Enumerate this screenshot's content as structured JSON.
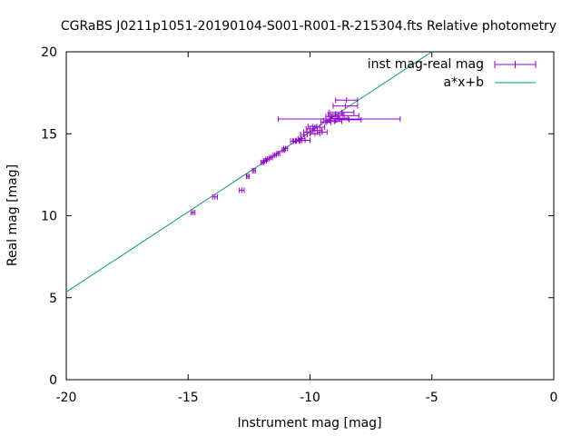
{
  "chart_data": {
    "type": "scatter",
    "title": "CGRaBS J0211p1051-20190104-S001-R001-R-215304.fts Relative photometry",
    "xlabel": "Instrument mag [mag]",
    "ylabel": "Real mag [mag]",
    "xlim": [
      -20,
      0
    ],
    "ylim": [
      0,
      20
    ],
    "x_ticks": [
      "-20",
      "-15",
      "-10",
      "-5",
      "0"
    ],
    "y_ticks": [
      "0",
      "5",
      "10",
      "15",
      "20"
    ],
    "grid": false,
    "legend_position": "top-right",
    "colors": {
      "points": "#9400d3",
      "fit": "#009e73"
    },
    "series": [
      {
        "name": "inst mag-real mag",
        "kind": "errorbar",
        "points": [
          {
            "x": -14.8,
            "y": 10.2,
            "xerr": 0.08
          },
          {
            "x": -13.9,
            "y": 11.15,
            "xerr": 0.1
          },
          {
            "x": -12.8,
            "y": 11.55,
            "xerr": 0.1
          },
          {
            "x": -12.55,
            "y": 12.4,
            "xerr": 0.06
          },
          {
            "x": -12.3,
            "y": 12.75,
            "xerr": 0.06
          },
          {
            "x": -11.95,
            "y": 13.25,
            "xerr": 0.06
          },
          {
            "x": -11.85,
            "y": 13.35,
            "xerr": 0.06
          },
          {
            "x": -11.75,
            "y": 13.45,
            "xerr": 0.06
          },
          {
            "x": -11.6,
            "y": 13.55,
            "xerr": 0.06
          },
          {
            "x": -11.45,
            "y": 13.7,
            "xerr": 0.06
          },
          {
            "x": -11.3,
            "y": 13.8,
            "xerr": 0.06
          },
          {
            "x": -11.1,
            "y": 14.0,
            "xerr": 0.06
          },
          {
            "x": -11.0,
            "y": 14.1,
            "xerr": 0.08
          },
          {
            "x": -10.7,
            "y": 14.55,
            "xerr": 0.1
          },
          {
            "x": -10.55,
            "y": 14.55,
            "xerr": 0.12
          },
          {
            "x": -10.45,
            "y": 14.6,
            "xerr": 0.12
          },
          {
            "x": -10.35,
            "y": 14.7,
            "xerr": 0.14
          },
          {
            "x": -10.25,
            "y": 14.95,
            "xerr": 0.14
          },
          {
            "x": -10.2,
            "y": 14.6,
            "xerr": 0.2
          },
          {
            "x": -10.1,
            "y": 15.1,
            "xerr": 0.16
          },
          {
            "x": -10.0,
            "y": 15.3,
            "xerr": 0.16
          },
          {
            "x": -9.9,
            "y": 15.45,
            "xerr": 0.18
          },
          {
            "x": -9.8,
            "y": 15.0,
            "xerr": 0.2
          },
          {
            "x": -9.7,
            "y": 15.2,
            "xerr": 0.18
          },
          {
            "x": -9.6,
            "y": 15.4,
            "xerr": 0.2
          },
          {
            "x": -9.5,
            "y": 15.1,
            "xerr": 0.2
          },
          {
            "x": -9.35,
            "y": 15.7,
            "xerr": 0.2
          },
          {
            "x": -9.2,
            "y": 15.8,
            "xerr": 0.25
          },
          {
            "x": -9.1,
            "y": 16.05,
            "xerr": 0.25
          },
          {
            "x": -9.0,
            "y": 15.75,
            "xerr": 0.3
          },
          {
            "x": -8.95,
            "y": 16.2,
            "xerr": 0.3
          },
          {
            "x": -8.8,
            "y": 15.95,
            "xerr": 0.35
          },
          {
            "x": -8.7,
            "y": 16.3,
            "xerr": 0.5
          },
          {
            "x": -8.6,
            "y": 16.1,
            "xerr": 0.6
          },
          {
            "x": -8.55,
            "y": 16.7,
            "xerr": 0.5
          },
          {
            "x": -8.5,
            "y": 17.05,
            "xerr": 0.45
          },
          {
            "x": -8.8,
            "y": 15.9,
            "xerr": 2.5
          },
          {
            "x": -8.4,
            "y": 15.85,
            "xerr": 0.5
          }
        ]
      },
      {
        "name": "a*x+b",
        "kind": "line",
        "x": [
          -20,
          -5.0
        ],
        "y": [
          5.35,
          20.0
        ]
      }
    ]
  }
}
